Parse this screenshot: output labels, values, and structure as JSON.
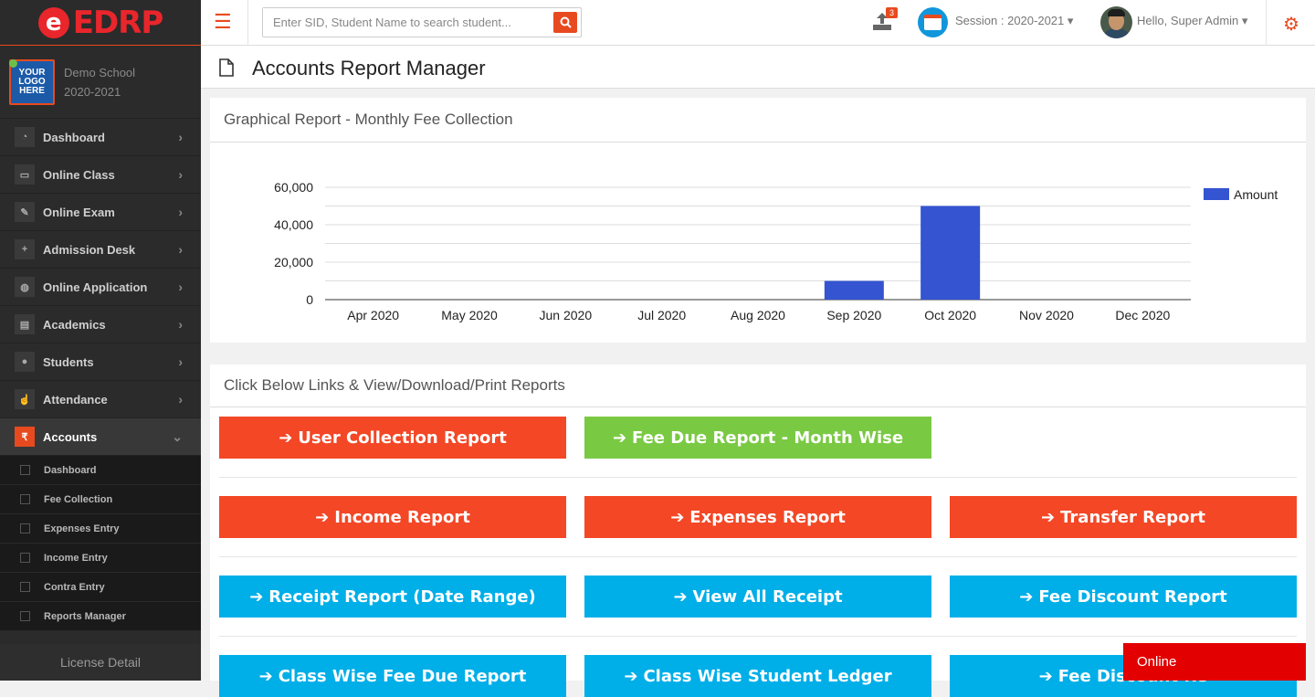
{
  "brand": {
    "logo_letter": "e",
    "name": "EDRP"
  },
  "school": {
    "logo_text": "YOUR LOGO HERE",
    "name": "Demo School",
    "session": "2020-2021"
  },
  "sidebar": {
    "items": [
      {
        "label": "Dashboard",
        "icon": "dashboard-icon",
        "glyph": "◔"
      },
      {
        "label": "Online Class",
        "icon": "monitor-icon",
        "glyph": "▭"
      },
      {
        "label": "Online Exam",
        "icon": "edit-icon",
        "glyph": "✎"
      },
      {
        "label": "Admission Desk",
        "icon": "user-plus-icon",
        "glyph": "+"
      },
      {
        "label": "Online Application",
        "icon": "globe-icon",
        "glyph": "◍"
      },
      {
        "label": "Academics",
        "icon": "book-icon",
        "glyph": "▤"
      },
      {
        "label": "Students",
        "icon": "users-icon",
        "glyph": "●"
      },
      {
        "label": "Attendance",
        "icon": "hand-icon",
        "glyph": "☝"
      },
      {
        "label": "Accounts",
        "icon": "rupee-icon",
        "glyph": "₹"
      }
    ],
    "accounts_sub": [
      "Dashboard",
      "Fee Collection",
      "Expenses Entry",
      "Income Entry",
      "Contra Entry",
      "Reports Manager"
    ],
    "license": "License Detail"
  },
  "topbar": {
    "search_placeholder": "Enter SID, Student Name to search student...",
    "upload_badge": "3",
    "session": "Session : 2020-2021",
    "greeting": "Hello, Super Admin"
  },
  "page": {
    "title": "Accounts Report Manager"
  },
  "chart_panel": {
    "title": "Graphical Report - Monthly Fee Collection"
  },
  "chart_data": {
    "type": "bar",
    "categories": [
      "Apr 2020",
      "May 2020",
      "Jun 2020",
      "Jul 2020",
      "Aug 2020",
      "Sep 2020",
      "Oct 2020",
      "Nov 2020",
      "Dec 2020"
    ],
    "series": [
      {
        "name": "Amount",
        "values": [
          0,
          0,
          0,
          0,
          0,
          10000,
          50000,
          0,
          0
        ]
      }
    ],
    "yticks": [
      "0",
      "20,000",
      "40,000",
      "60,000"
    ],
    "ylim": [
      0,
      60000
    ],
    "legend": "right",
    "color": "#3454d1",
    "grid": true
  },
  "links_panel": {
    "title": "Click Below Links & View/Download/Print Reports",
    "rows": [
      [
        {
          "label": "User Collection Report",
          "color": "red"
        },
        {
          "label": "Fee Due Report - Month Wise",
          "color": "green"
        }
      ],
      [
        {
          "label": "Income Report",
          "color": "red"
        },
        {
          "label": "Expenses Report",
          "color": "red"
        },
        {
          "label": "Transfer Report",
          "color": "red"
        }
      ],
      [
        {
          "label": "Receipt Report (Date Range)",
          "color": "blue"
        },
        {
          "label": "View All Receipt",
          "color": "blue"
        },
        {
          "label": "Fee Discount Report",
          "color": "blue"
        }
      ],
      [
        {
          "label": "Class Wise Fee Due Report",
          "color": "blue"
        },
        {
          "label": "Class Wise Student Ledger",
          "color": "blue"
        },
        {
          "label": "Fee Discount Re",
          "color": "blue"
        }
      ]
    ]
  },
  "status": {
    "online": "Online"
  }
}
